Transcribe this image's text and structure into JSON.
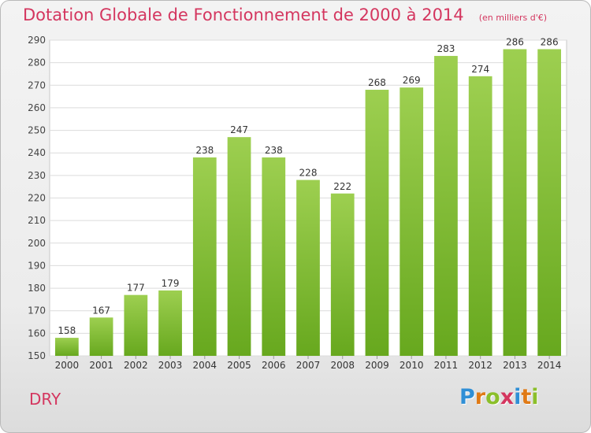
{
  "header": {
    "title": "Dotation Globale de Fonctionnement de 2000 à 2014",
    "unit": "(en milliers d'€)"
  },
  "footer": {
    "place": "DRY",
    "logo_letters": [
      "P",
      "r",
      "o",
      "x",
      "i",
      "t",
      "i"
    ],
    "logo_colors": [
      "#2f8fd6",
      "#e07a16",
      "#8bbf2a",
      "#d4365f",
      "#2f8fd6",
      "#e07a16",
      "#8bbf2a"
    ]
  },
  "chart_data": {
    "type": "bar",
    "categories": [
      "2000",
      "2001",
      "2002",
      "2003",
      "2004",
      "2005",
      "2006",
      "2007",
      "2008",
      "2009",
      "2010",
      "2011",
      "2012",
      "2013",
      "2014"
    ],
    "values": [
      158,
      167,
      177,
      179,
      238,
      247,
      238,
      228,
      222,
      268,
      269,
      283,
      274,
      286,
      286
    ],
    "ylim": [
      150,
      290
    ],
    "yticks": [
      150,
      160,
      170,
      180,
      190,
      200,
      210,
      220,
      230,
      240,
      250,
      260,
      270,
      280,
      290
    ],
    "grid": true,
    "bar_color_top": "#9dcf50",
    "bar_color_bottom": "#67a81e"
  }
}
